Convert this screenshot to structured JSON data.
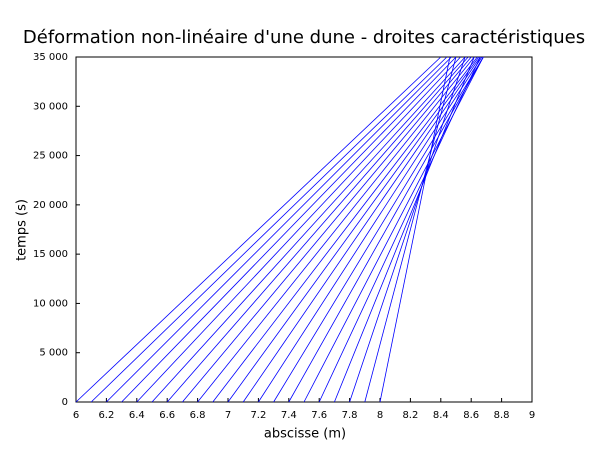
{
  "chart_data": {
    "type": "line",
    "title": "Déformation non-linéaire d'une dune - droites caractéristiques",
    "x_label": "abscisse (m)",
    "y_label": "temps (s)",
    "color": "#0000ff",
    "xlim": [
      6,
      9
    ],
    "ylim": [
      0,
      35000
    ],
    "xticks": [
      6,
      6.2,
      6.4,
      6.6,
      6.8,
      7,
      7.2,
      7.4,
      7.6,
      7.8,
      8,
      8.2,
      8.4,
      8.6,
      8.8,
      9
    ],
    "yticks": [
      0,
      {
        "value": 5000,
        "label": "5 000"
      },
      {
        "value": 10000,
        "label": "10 000"
      },
      {
        "value": 15000,
        "label": "15 000"
      },
      {
        "value": 20000,
        "label": "20 000"
      },
      {
        "value": 25000,
        "label": "25 000"
      },
      {
        "value": 30000,
        "label": "30 000"
      },
      {
        "value": 35000,
        "label": "35 000"
      }
    ],
    "series": [
      {
        "x": [
          6.0,
          8.4
        ],
        "values": [
          0,
          35000
        ]
      },
      {
        "x": [
          6.1,
          8.44
        ],
        "values": [
          0,
          35000
        ]
      },
      {
        "x": [
          6.2,
          8.47
        ],
        "values": [
          0,
          35000
        ]
      },
      {
        "x": [
          6.3,
          8.5
        ],
        "values": [
          0,
          35000
        ]
      },
      {
        "x": [
          6.4,
          8.53
        ],
        "values": [
          0,
          35000
        ]
      },
      {
        "x": [
          6.5,
          8.56
        ],
        "values": [
          0,
          35000
        ]
      },
      {
        "x": [
          6.6,
          8.58
        ],
        "values": [
          0,
          35000
        ]
      },
      {
        "x": [
          6.7,
          8.6
        ],
        "values": [
          0,
          35000
        ]
      },
      {
        "x": [
          6.8,
          8.62
        ],
        "values": [
          0,
          35000
        ]
      },
      {
        "x": [
          6.9,
          8.64
        ],
        "values": [
          0,
          35000
        ]
      },
      {
        "x": [
          7.0,
          8.65
        ],
        "values": [
          0,
          35000
        ]
      },
      {
        "x": [
          7.1,
          8.66
        ],
        "values": [
          0,
          35000
        ]
      },
      {
        "x": [
          7.2,
          8.67
        ],
        "values": [
          0,
          35000
        ]
      },
      {
        "x": [
          7.3,
          8.68
        ],
        "values": [
          0,
          35000
        ]
      },
      {
        "x": [
          7.4,
          8.68
        ],
        "values": [
          0,
          35000
        ]
      },
      {
        "x": [
          7.5,
          8.68
        ],
        "values": [
          0,
          35000
        ]
      },
      {
        "x": [
          7.6,
          8.66
        ],
        "values": [
          0,
          35000
        ]
      },
      {
        "x": [
          7.7,
          8.62
        ],
        "values": [
          0,
          35000
        ]
      },
      {
        "x": [
          7.8,
          8.56
        ],
        "values": [
          0,
          35000
        ]
      },
      {
        "x": [
          7.9,
          8.5
        ],
        "values": [
          0,
          35000
        ]
      },
      {
        "x": [
          8.0,
          8.46
        ],
        "values": [
          0,
          35000
        ]
      }
    ]
  }
}
